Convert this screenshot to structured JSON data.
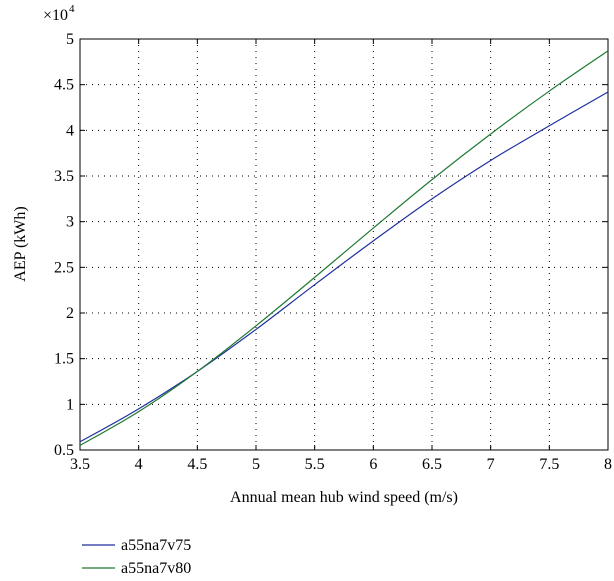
{
  "chart_data": {
    "type": "line",
    "xlabel": "Annual mean hub wind speed (m/s)",
    "ylabel": "AEP (kWh)",
    "y_scale_base": "×10",
    "y_scale_exp": "4",
    "xlim": [
      3.5,
      8
    ],
    "ylim": [
      0.5,
      5
    ],
    "x_ticks": [
      3.5,
      4,
      4.5,
      5,
      5.5,
      6,
      6.5,
      7,
      7.5,
      8
    ],
    "x_tick_labels": [
      "3.5",
      "4",
      "4.5",
      "5",
      "5.5",
      "6",
      "6.5",
      "7",
      "7.5",
      "8"
    ],
    "y_ticks": [
      0.5,
      1,
      1.5,
      2,
      2.5,
      3,
      3.5,
      4,
      4.5,
      5
    ],
    "y_tick_labels": [
      "0.5",
      "1",
      "1.5",
      "2",
      "2.5",
      "3",
      "3.5",
      "4",
      "4.5",
      "5"
    ],
    "grid": true,
    "legend_placement": "below",
    "series": [
      {
        "name": "a55na7v75",
        "color": "#1f2fa0",
        "x": [
          3.5,
          4,
          4.5,
          5,
          5.5,
          6,
          6.5,
          7,
          7.5,
          8
        ],
        "y": [
          0.59,
          0.95,
          1.36,
          1.82,
          2.31,
          2.79,
          3.25,
          3.67,
          4.05,
          4.42
        ]
      },
      {
        "name": "a55na7v80",
        "color": "#1e7a30",
        "x": [
          3.5,
          4,
          4.5,
          5,
          5.5,
          6,
          6.5,
          7,
          7.5,
          8
        ],
        "y": [
          0.55,
          0.92,
          1.36,
          1.86,
          2.39,
          2.93,
          3.46,
          3.96,
          4.43,
          4.87
        ]
      }
    ]
  }
}
